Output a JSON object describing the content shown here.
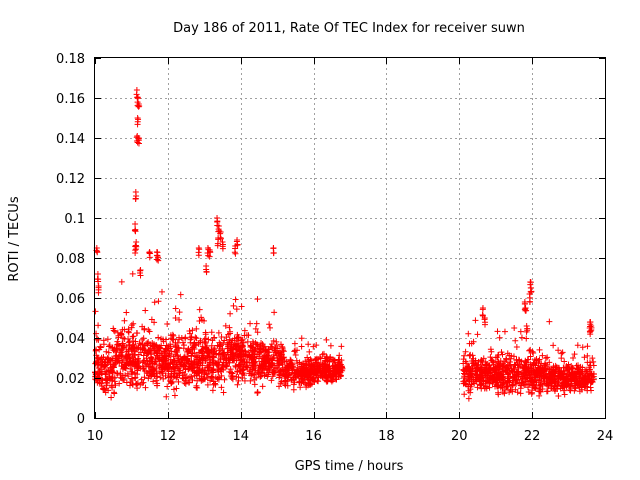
{
  "chart_data": {
    "type": "scatter",
    "title": "Day 186 of 2011, Rate Of TEC Index for receiver suwn",
    "xlabel": "GPS time / hours",
    "ylabel": "ROTI / TECUs",
    "xlim": [
      10,
      24
    ],
    "ylim": [
      0,
      0.18
    ],
    "xticks": [
      10,
      12,
      14,
      16,
      18,
      20,
      22,
      24
    ],
    "yticks": [
      0,
      0.02,
      0.04,
      0.06,
      0.08,
      0.1,
      0.12,
      0.14,
      0.16,
      0.18
    ],
    "ytick_labels": [
      "0",
      "0.02",
      "0.04",
      "0.06",
      "0.08",
      "0.1",
      "0.12",
      "0.14",
      "0.16",
      "0.18"
    ],
    "grid": true,
    "marker": "plus",
    "color": "#ff0000",
    "series": [
      {
        "name": "ROTI",
        "clusters": [
          {
            "x": [
              10.0,
              10.5
            ],
            "ybase": 0.025,
            "spread": 0.012
          },
          {
            "x": [
              10.5,
              11.0
            ],
            "ybase": 0.03,
            "spread": 0.015
          },
          {
            "x": [
              11.0,
              11.5
            ],
            "ybase": 0.03,
            "spread": 0.016
          },
          {
            "x": [
              11.5,
              12.5
            ],
            "ybase": 0.028,
            "spread": 0.013
          },
          {
            "x": [
              12.5,
              13.5
            ],
            "ybase": 0.028,
            "spread": 0.013
          },
          {
            "x": [
              13.5,
              14.5
            ],
            "ybase": 0.03,
            "spread": 0.014
          },
          {
            "x": [
              14.5,
              15.2
            ],
            "ybase": 0.028,
            "spread": 0.011
          },
          {
            "x": [
              15.2,
              16.0
            ],
            "ybase": 0.022,
            "spread": 0.007
          },
          {
            "x": [
              16.0,
              16.8
            ],
            "ybase": 0.024,
            "spread": 0.006
          },
          {
            "x": [
              20.1,
              20.6
            ],
            "ybase": 0.022,
            "spread": 0.009
          },
          {
            "x": [
              20.6,
              21.5
            ],
            "ybase": 0.022,
            "spread": 0.009
          },
          {
            "x": [
              21.5,
              22.5
            ],
            "ybase": 0.022,
            "spread": 0.009
          },
          {
            "x": [
              22.5,
              23.7
            ],
            "ybase": 0.02,
            "spread": 0.007
          }
        ],
        "peaks": [
          {
            "x": 10.05,
            "y": 0.085
          },
          {
            "x": 10.08,
            "y": 0.072
          },
          {
            "x": 10.1,
            "y": 0.066
          },
          {
            "x": 11.15,
            "y": 0.164
          },
          {
            "x": 11.18,
            "y": 0.16
          },
          {
            "x": 11.2,
            "y": 0.157
          },
          {
            "x": 11.17,
            "y": 0.15
          },
          {
            "x": 11.16,
            "y": 0.141
          },
          {
            "x": 11.2,
            "y": 0.14
          },
          {
            "x": 11.12,
            "y": 0.113
          },
          {
            "x": 11.1,
            "y": 0.097
          },
          {
            "x": 11.13,
            "y": 0.088
          },
          {
            "x": 11.11,
            "y": 0.086
          },
          {
            "x": 11.25,
            "y": 0.074
          },
          {
            "x": 11.5,
            "y": 0.083
          },
          {
            "x": 11.7,
            "y": 0.083
          },
          {
            "x": 11.72,
            "y": 0.081
          },
          {
            "x": 13.35,
            "y": 0.1
          },
          {
            "x": 13.4,
            "y": 0.096
          },
          {
            "x": 13.45,
            "y": 0.093
          },
          {
            "x": 13.38,
            "y": 0.09
          },
          {
            "x": 13.5,
            "y": 0.088
          },
          {
            "x": 13.9,
            "y": 0.089
          },
          {
            "x": 13.85,
            "y": 0.086
          },
          {
            "x": 13.1,
            "y": 0.085
          },
          {
            "x": 13.15,
            "y": 0.084
          },
          {
            "x": 12.85,
            "y": 0.085
          },
          {
            "x": 14.9,
            "y": 0.085
          },
          {
            "x": 13.05,
            "y": 0.076
          },
          {
            "x": 20.65,
            "y": 0.055
          },
          {
            "x": 20.7,
            "y": 0.05
          },
          {
            "x": 21.8,
            "y": 0.058
          },
          {
            "x": 21.82,
            "y": 0.055
          },
          {
            "x": 21.95,
            "y": 0.068
          },
          {
            "x": 21.97,
            "y": 0.065
          },
          {
            "x": 21.93,
            "y": 0.062
          },
          {
            "x": 23.6,
            "y": 0.048
          },
          {
            "x": 23.62,
            "y": 0.046
          },
          {
            "x": 23.58,
            "y": 0.045
          },
          {
            "x": 21.85,
            "y": 0.046
          }
        ]
      }
    ]
  }
}
